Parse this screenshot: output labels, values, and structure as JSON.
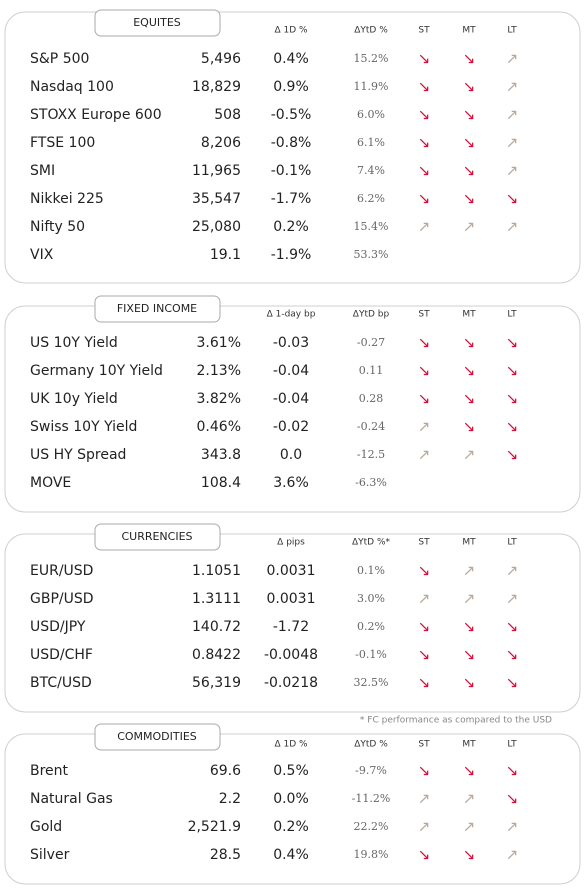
{
  "sections": [
    {
      "title": "EQUITES",
      "headers": [
        "Δ 1D %",
        "ΔYtD %",
        "ST",
        "MT",
        "LT"
      ],
      "positive_color": "#3aaa35",
      "rows": [
        [
          "S&P 500",
          "5,496",
          "0.4%",
          "15.2%",
          "↘",
          "↘",
          "↗"
        ],
        [
          "Nasdaq 100",
          "18,829",
          "0.9%",
          "11.9%",
          "↘",
          "↘",
          "↗"
        ],
        [
          "STOXX Europe 600",
          "508",
          "-0.5%",
          "6.0%",
          "↘",
          "↘",
          "↗"
        ],
        [
          "FTSE 100",
          "8,206",
          "-0.8%",
          "6.1%",
          "↘",
          "↘",
          "↗"
        ],
        [
          "SMI",
          "11,965",
          "-0.1%",
          "7.4%",
          "↘",
          "↘",
          "↗"
        ],
        [
          "Nikkei 225",
          "35,547",
          "-1.7%",
          "6.2%",
          "↘",
          "↘",
          "↘"
        ],
        [
          "Nifty  50",
          "25,080",
          "0.2%",
          "15.4%",
          "↗",
          "↗",
          "↗"
        ],
        [
          "VIX",
          "19.1",
          "-1.9%",
          "53.3%"
        ]
      ]
    },
    {
      "title": "FIXED INCOME",
      "headers": [
        "Δ 1-day bp",
        "ΔYtD bp",
        "ST",
        "MT",
        "LT"
      ],
      "positive_color": "#3aaa35",
      "rows": [
        [
          "US 10Y Yield",
          "3.61%",
          "-0.03",
          "-0.27",
          "↘",
          "↘",
          "↘"
        ],
        [
          "Germany 10Y Yield",
          "2.13%",
          "-0.04",
          "0.11",
          "↘",
          "↘",
          "↘"
        ],
        [
          "UK 10y Yield",
          "3.82%",
          "-0.04",
          "0.28",
          "↘",
          "↘",
          "↘"
        ],
        [
          "Swiss 10Y Yield",
          "0.46%",
          "-0.02",
          "-0.24",
          "↗",
          "↘",
          "↘"
        ],
        [
          "US HY Spread",
          "343.8",
          "0.0",
          "-12.5",
          "↗",
          "↗",
          "↘"
        ],
        [
          "MOVE",
          "108.4",
          "3.6%",
          "-6.3%"
        ]
      ]
    },
    {
      "title": "CURRENCIES",
      "headers": [
        "Δ pips",
        "ΔYtD %*",
        "ST",
        "MT",
        "LT"
      ],
      "positive_color": "#a8a8a8",
      "rows": [
        [
          "EUR/USD",
          "1.1051",
          "0.0031",
          "0.1%",
          "↘",
          "↗",
          "↗"
        ],
        [
          "GBP/USD",
          "1.3111",
          "0.0031",
          "3.0%",
          "↗",
          "↗",
          "↗"
        ],
        [
          "USD/JPY",
          "140.72",
          "-1.72",
          "0.2%",
          "↘",
          "↘",
          "↘"
        ],
        [
          "USD/CHF",
          "0.8422",
          "-0.0048",
          "-0.1%",
          "↘",
          "↘",
          "↘"
        ],
        [
          "BTC/USD",
          "56,319",
          "-0.0218",
          "32.5%",
          "↘",
          "↘",
          "↘"
        ]
      ]
    },
    {
      "title": "COMMODITIES",
      "headers": [
        "Δ 1D %",
        "ΔYtD %",
        "ST",
        "MT",
        "LT"
      ],
      "positive_color": "#a8a8a8",
      "negative_color": "#a8a8a8",
      "rows": [
        [
          "Brent",
          "69.6",
          "0.5%",
          "-9.7%",
          "↘",
          "↘",
          "↘"
        ],
        [
          "Natural Gas",
          "2.2",
          "0.0%",
          "-11.2%",
          "↗",
          "↗",
          "↘"
        ],
        [
          "Gold",
          "2,521.9",
          "0.2%",
          "22.2%",
          "↗",
          "↗",
          "↗"
        ],
        [
          "Silver",
          "28.5",
          "0.4%",
          "19.8%",
          "↘",
          "↘",
          "↗"
        ]
      ]
    }
  ],
  "footnote": "* FC performance as compared to the USD"
}
